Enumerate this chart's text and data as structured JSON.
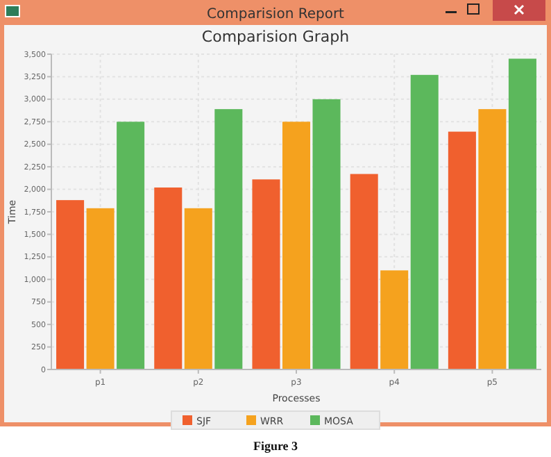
{
  "chart_data": {
    "type": "bar",
    "title": "Comparision Graph",
    "xlabel": "Processes",
    "ylabel": "Time",
    "annotations": [
      "Comparision Report",
      "Figure 3"
    ],
    "categories": [
      "p1",
      "p2",
      "p3",
      "p4",
      "p5"
    ],
    "series": [
      {
        "name": "SJF",
        "color": "#f0602e",
        "values": [
          1880,
          2020,
          2110,
          2170,
          2640
        ]
      },
      {
        "name": "WRR",
        "color": "#f5a21e",
        "values": [
          1790,
          1790,
          2750,
          1100,
          2890
        ]
      },
      {
        "name": "MOSA",
        "color": "#5cb85c",
        "values": [
          2750,
          2890,
          3000,
          3270,
          3450
        ]
      }
    ],
    "ylim": [
      0,
      3500
    ],
    "yticks": [
      0,
      250,
      500,
      750,
      {
        "value": 1000,
        "label": "1,000"
      },
      {
        "value": 1250,
        "label": "1,250"
      },
      {
        "value": 1500,
        "label": "1,500"
      },
      {
        "value": 1750,
        "label": "1,750"
      },
      {
        "value": 2000,
        "label": "2,000"
      },
      {
        "value": 2250,
        "label": "2,250"
      },
      {
        "value": 2500,
        "label": "2,500"
      },
      {
        "value": 2750,
        "label": "2,750"
      },
      {
        "value": 3000,
        "label": "3,000"
      },
      {
        "value": 3250,
        "label": "3,250"
      },
      {
        "value": 3500,
        "label": "3,500"
      }
    ],
    "grid": true,
    "legend": "bottom"
  }
}
